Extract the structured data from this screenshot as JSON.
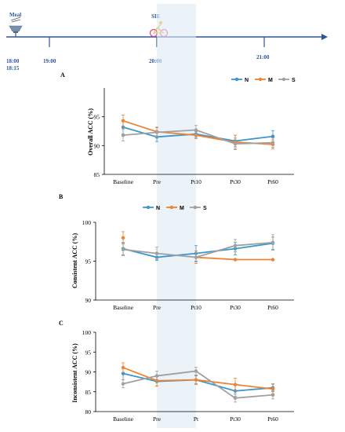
{
  "timeline": {
    "meal_label": "Meal",
    "sie_label": "SIE",
    "times": [
      {
        "text": "18:00",
        "sub": "18:15"
      },
      {
        "text": "19:00",
        "sub": ""
      },
      {
        "text": "20:00",
        "sub": ""
      },
      {
        "text": "21:00",
        "sub": ""
      }
    ],
    "icons": [
      "meal-bowl-icon",
      "cyclist-icon"
    ],
    "color": "#2f5597"
  },
  "chart_data": [
    {
      "type": "line",
      "panel": "A",
      "ylabel": "Overall ACC (%)",
      "xlabel": "",
      "ylim": [
        85,
        100
      ],
      "yticks": [
        85,
        90,
        95
      ],
      "categories": [
        "Baseline",
        "Pre",
        "Pt10",
        "Pt30",
        "Pt60"
      ],
      "legend": [
        "N",
        "M",
        "S"
      ],
      "legend_position": "top-right",
      "series": [
        {
          "name": "N",
          "color": "#3a96cf",
          "values": [
            93.2,
            91.5,
            92.0,
            90.8,
            91.6
          ],
          "errors": [
            1.2,
            0.8,
            0.6,
            1.0,
            1.0
          ]
        },
        {
          "name": "M",
          "color": "#ef8330",
          "values": [
            94.3,
            92.4,
            91.8,
            90.6,
            90.2
          ],
          "errors": [
            1.0,
            0.8,
            0.6,
            1.2,
            0.8
          ]
        },
        {
          "name": "S",
          "color": "#a0a0a0",
          "values": [
            91.8,
            92.3,
            92.7,
            90.3,
            90.5
          ],
          "errors": [
            1.0,
            0.8,
            0.8,
            1.0,
            0.8
          ]
        }
      ]
    },
    {
      "type": "line",
      "panel": "B",
      "ylabel": "Consistent ACC (%)",
      "xlabel": "",
      "ylim": [
        90,
        100
      ],
      "yticks": [
        90,
        95,
        100
      ],
      "categories": [
        "Baseline",
        "Pre",
        "Pt10",
        "Pt30",
        "Pt60"
      ],
      "legend": [
        "N",
        "M",
        "S"
      ],
      "legend_position": "top-left",
      "series": [
        {
          "name": "N",
          "color": "#3a96cf",
          "values": [
            96.6,
            95.5,
            96.0,
            96.6,
            97.3
          ],
          "errors": [
            0.8,
            0.4,
            1.0,
            0.8,
            0.8
          ]
        },
        {
          "name": "M",
          "color": "#ef8330",
          "values": [
            98.0,
            null,
            95.5,
            95.2,
            95.2
          ],
          "errors": [
            0.8,
            0,
            0.8,
            0.0,
            0.0
          ]
        },
        {
          "name": "S",
          "color": "#a0a0a0",
          "values": [
            96.5,
            96.0,
            95.5,
            97.0,
            97.4
          ],
          "errors": [
            0.8,
            0.8,
            0.6,
            0.8,
            1.0
          ]
        }
      ]
    },
    {
      "type": "line",
      "panel": "C",
      "ylabel": "Inconsistent ACC (%)",
      "xlabel": "",
      "ylim": [
        80,
        100
      ],
      "yticks": [
        80,
        85,
        90,
        95,
        100
      ],
      "categories": [
        "Baseline",
        "Pre",
        "Pt",
        "Pt30",
        "Pt60"
      ],
      "legend": [],
      "series": [
        {
          "name": "N",
          "color": "#3a96cf",
          "values": [
            89.6,
            87.6,
            88.0,
            85.2,
            86.0
          ],
          "errors": [
            1.6,
            1.2,
            1.0,
            1.4,
            1.0
          ]
        },
        {
          "name": "M",
          "color": "#ef8330",
          "values": [
            91.1,
            87.8,
            88.0,
            86.8,
            85.7
          ],
          "errors": [
            1.2,
            1.4,
            1.2,
            1.6,
            1.2
          ]
        },
        {
          "name": "S",
          "color": "#a0a0a0",
          "values": [
            87.0,
            89.0,
            90.2,
            83.4,
            84.2
          ],
          "errors": [
            1.0,
            1.2,
            1.0,
            1.0,
            1.0
          ]
        }
      ]
    }
  ]
}
